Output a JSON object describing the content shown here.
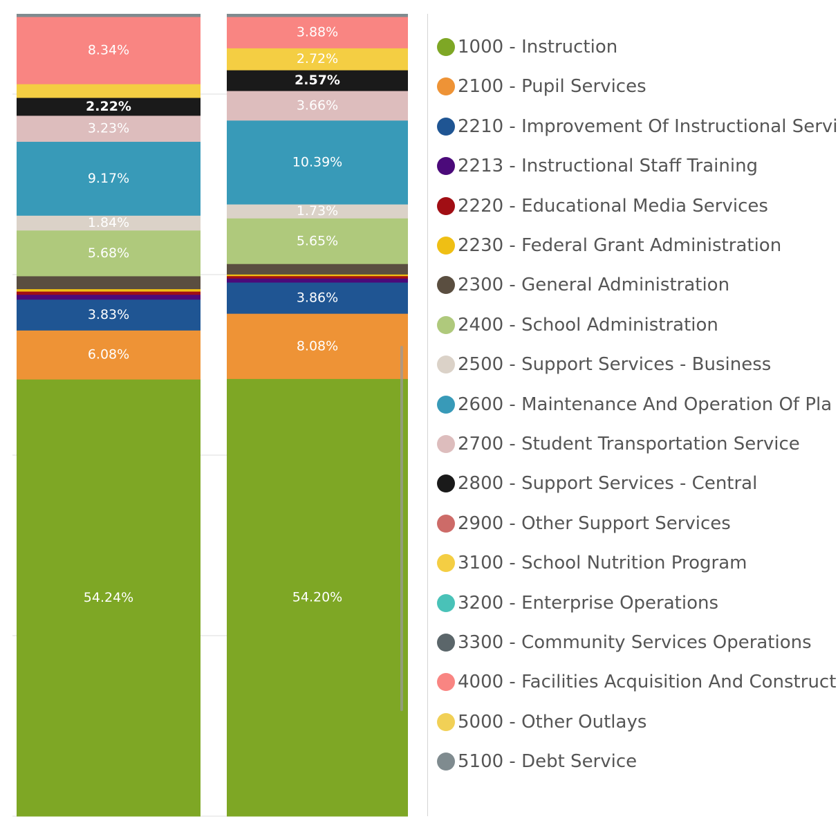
{
  "chart_data": {
    "type": "bar",
    "stacked": true,
    "normalized_percent": true,
    "categories": [
      "",
      ""
    ],
    "ylim": [
      0,
      100
    ],
    "grid": true,
    "legend_position": "right",
    "series": [
      {
        "name": "1000 - Instruction",
        "color": "#7ea725",
        "values": [
          54.24,
          54.2
        ],
        "labels": [
          "54.24%",
          "54.20%"
        ]
      },
      {
        "name": "2100 - Pupil Services",
        "color": "#ee9336",
        "values": [
          6.08,
          8.08
        ],
        "labels": [
          "6.08%",
          "8.08%"
        ]
      },
      {
        "name": "2210 - Improvement Of Instructional Servi",
        "color": "#1f5593",
        "values": [
          3.83,
          3.86
        ],
        "labels": [
          "3.83%",
          "3.86%"
        ]
      },
      {
        "name": "2213 - Instructional Staff Training",
        "color": "#4b0a7a",
        "values": [
          0.6,
          0.5
        ],
        "labels": [
          "",
          ""
        ]
      },
      {
        "name": "2220 - Educational Media Services",
        "color": "#a10e14",
        "values": [
          0.4,
          0.3
        ],
        "labels": [
          "",
          ""
        ]
      },
      {
        "name": "2230 - Federal Grant Administration",
        "color": "#efbf14",
        "values": [
          0.3,
          0.2
        ],
        "labels": [
          "",
          ""
        ]
      },
      {
        "name": "2300 - General Administration",
        "color": "#5a4e40",
        "values": [
          1.6,
          1.3
        ],
        "labels": [
          "",
          ""
        ]
      },
      {
        "name": "2400 - School Administration",
        "color": "#afc97c",
        "values": [
          5.68,
          5.65
        ],
        "labels": [
          "5.68%",
          "5.65%"
        ]
      },
      {
        "name": "2500 - Support Services - Business",
        "color": "#dbd2c8",
        "values": [
          1.84,
          1.73
        ],
        "labels": [
          "1.84%",
          "1.73%"
        ]
      },
      {
        "name": "2600 - Maintenance And Operation Of Pla",
        "color": "#389ab8",
        "values": [
          9.17,
          10.39
        ],
        "labels": [
          "9.17%",
          "10.39%"
        ]
      },
      {
        "name": "2700 - Student Transportation Service",
        "color": "#ddbdbd",
        "values": [
          3.23,
          3.66
        ],
        "labels": [
          "3.23%",
          "3.66%"
        ]
      },
      {
        "name": "2800 - Support Services - Central",
        "color": "#1a1a1a",
        "values": [
          2.22,
          2.57
        ],
        "labels": [
          "2.22%",
          "2.57%"
        ]
      },
      {
        "name": "2900 - Other Support Services",
        "color": "#cd6b68",
        "values": [
          0,
          0
        ],
        "labels": [
          "",
          ""
        ]
      },
      {
        "name": "3100 - School Nutrition Program",
        "color": "#f4ce43",
        "values": [
          1.7,
          2.72
        ],
        "labels": [
          "",
          "2.72%"
        ]
      },
      {
        "name": "3200 - Enterprise Operations",
        "color": "#49c2b8",
        "values": [
          0,
          0
        ],
        "labels": [
          "",
          ""
        ]
      },
      {
        "name": "3300 - Community Services Operations",
        "color": "#5b666a",
        "values": [
          0,
          0
        ],
        "labels": [
          "",
          ""
        ]
      },
      {
        "name": "4000 - Facilities Acquisition And Construct",
        "color": "#f98582",
        "values": [
          8.34,
          3.88
        ],
        "labels": [
          "8.34%",
          "3.88%"
        ]
      },
      {
        "name": "5000 - Other Outlays",
        "color": "#f1d056",
        "values": [
          0,
          0
        ],
        "labels": [
          "",
          ""
        ]
      },
      {
        "name": "5100 - Debt Service",
        "color": "#7f8b8f",
        "values": [
          0.35,
          0.35
        ],
        "labels": [
          "",
          ""
        ]
      }
    ],
    "title": "",
    "xlabel": "",
    "ylabel": ""
  }
}
